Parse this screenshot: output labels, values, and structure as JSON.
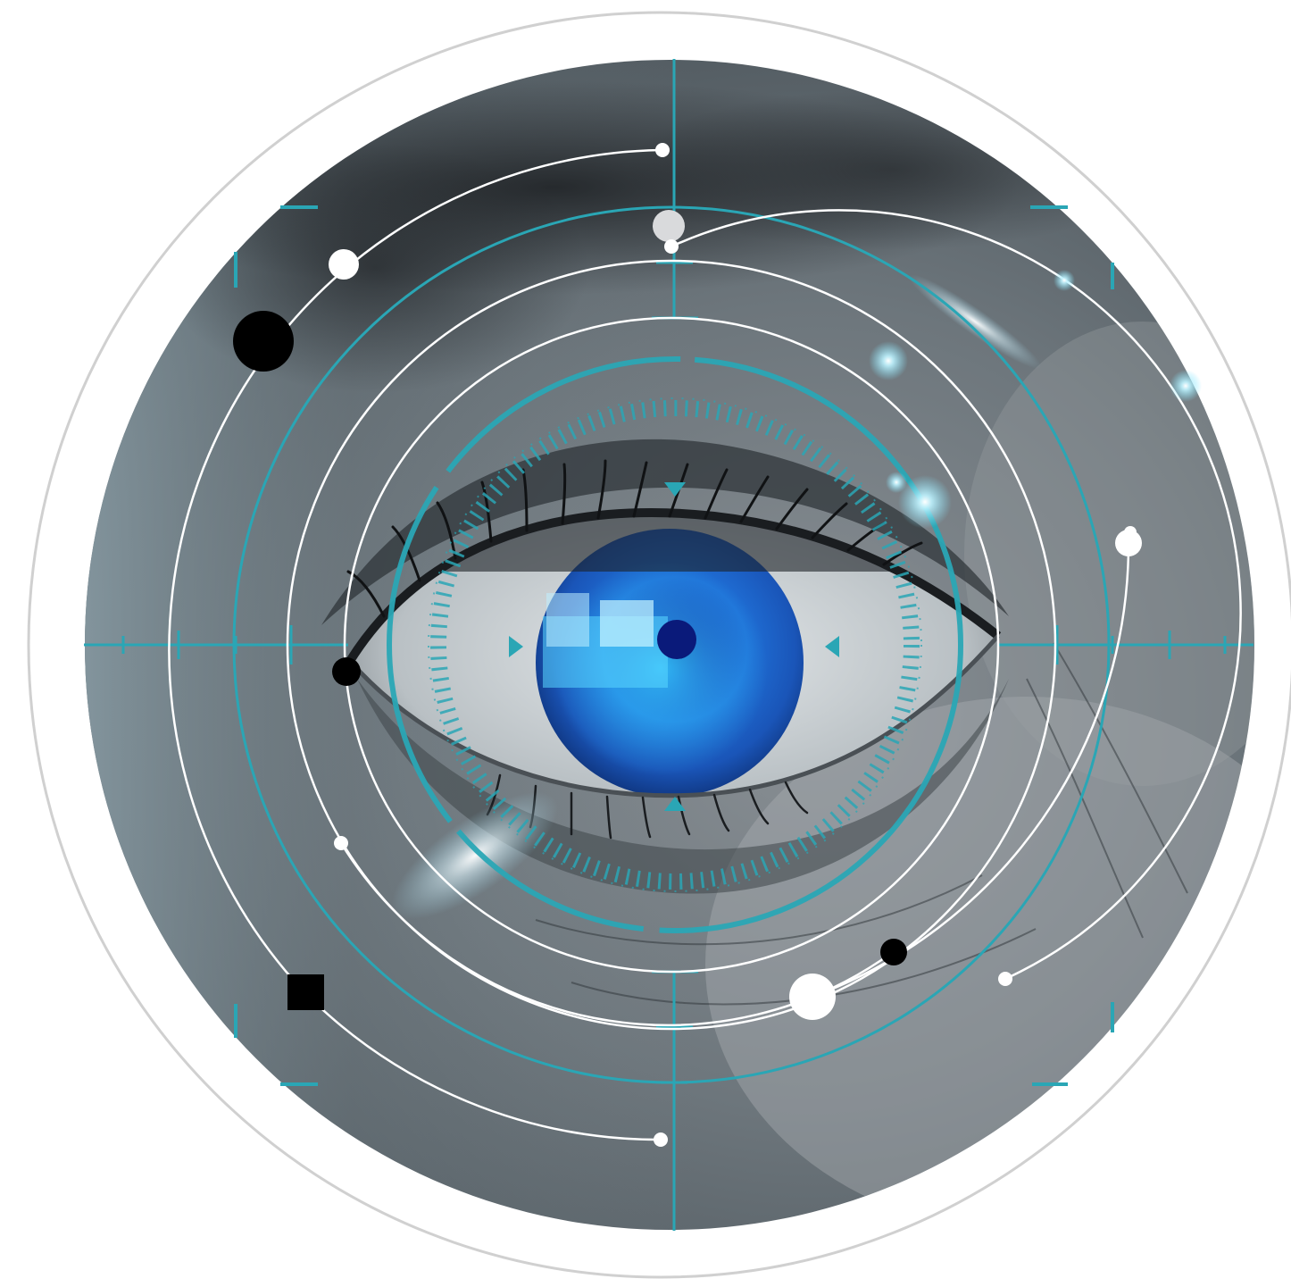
{
  "image": {
    "subject": "eye-scan-illustration",
    "colors": {
      "background": "#ffffff",
      "outer_ring": "#d0d0d0",
      "hud_accent": "#2aa6b5",
      "hud_glow": "#7fe6ff",
      "overlay_line": "#ffffff",
      "dot_dark": "#000000",
      "dot_light": "#ffffff",
      "dot_grey": "#d9dadc",
      "skin_light": "#9ea8ad",
      "skin_dark": "#3b4045",
      "iris_core": "#1233a8",
      "iris_mid": "#1f6fd6",
      "iris_glow": "#34c6ff",
      "pupil": "#0a1a7a"
    },
    "icons": [
      "crosshair-icon",
      "scan-ring-icon",
      "eye-icon"
    ]
  }
}
